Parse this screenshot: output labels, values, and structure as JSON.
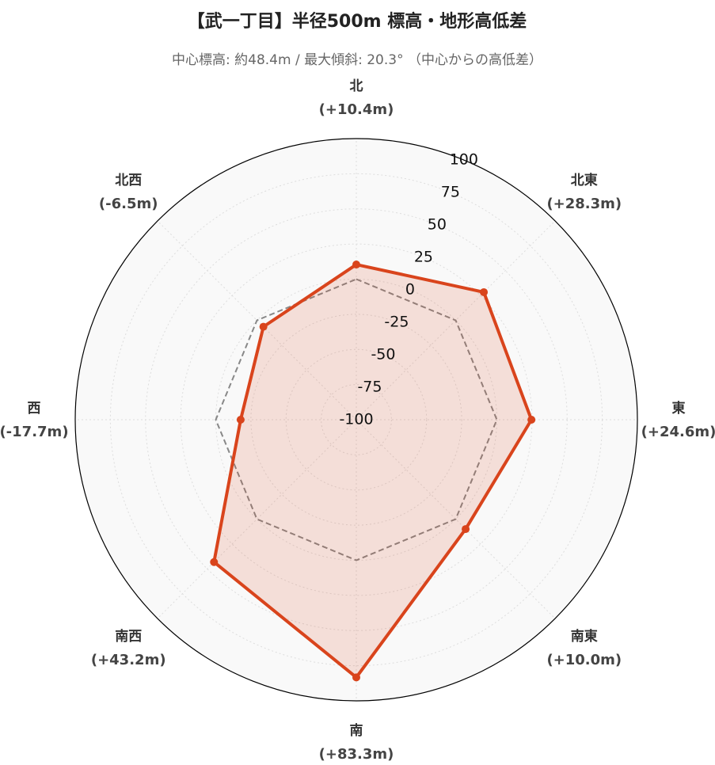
{
  "chart_data": {
    "type": "radar",
    "title": "【武一丁目】半径500m 標高・地形高低差",
    "subtitle": "中心標高: 約48.4m / 最大傾斜: 20.3° （中心からの高低差）",
    "categories": [
      "北",
      "北東",
      "東",
      "南東",
      "南",
      "南西",
      "西",
      "北西"
    ],
    "values": [
      10.4,
      28.3,
      24.6,
      10.0,
      83.3,
      43.2,
      -17.7,
      -6.5
    ],
    "value_labels": [
      "(+10.4m)",
      "(+28.3m)",
      "(+24.6m)",
      "(+10.0m)",
      "(+83.3m)",
      "(+43.2m)",
      "(-17.7m)",
      "(-6.5m)"
    ],
    "color": "#d9441c",
    "ylim": [
      -100,
      100
    ],
    "yticks": [
      -100,
      -75,
      -50,
      -25,
      0,
      25,
      50,
      75,
      100
    ],
    "reference_value": 0,
    "grid": true
  }
}
